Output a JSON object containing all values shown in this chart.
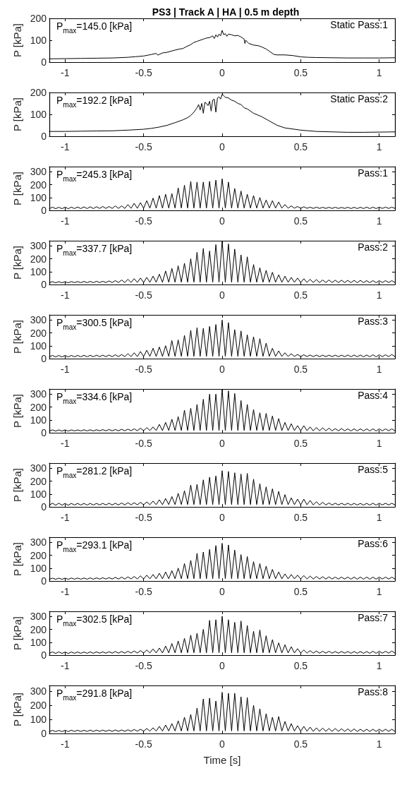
{
  "chart_data": [
    {
      "type": "line",
      "title": "PS3 | Track A | HA | 0.5 m depth",
      "ylabel": "P [kPa]",
      "annotations": [
        "P$_{max}$=145.0 [kPa]",
        "Static Pass:1"
      ],
      "xlim": [
        -1.1,
        1.1
      ],
      "xticks": [
        -1,
        -0.5,
        0,
        0.5,
        1
      ],
      "ylim": [
        0,
        200
      ],
      "yticks": [
        0,
        100,
        200
      ],
      "grid": false,
      "marker": "none",
      "line_style": "solid",
      "x": [
        -1.1,
        -1.0,
        -0.9,
        -0.8,
        -0.7,
        -0.6,
        -0.55,
        -0.5,
        -0.45,
        -0.42,
        -0.41,
        -0.38,
        -0.35,
        -0.3,
        -0.27,
        -0.25,
        -0.23,
        -0.2,
        -0.18,
        -0.16,
        -0.14,
        -0.12,
        -0.1,
        -0.08,
        -0.06,
        -0.05,
        -0.04,
        -0.03,
        -0.02,
        -0.01,
        0,
        0.01,
        0.02,
        0.03,
        0.04,
        0.06,
        0.08,
        0.1,
        0.12,
        0.14,
        0.145,
        0.15,
        0.17,
        0.2,
        0.23,
        0.25,
        0.28,
        0.3,
        0.33,
        0.35,
        0.4,
        0.45,
        0.5,
        0.55,
        0.6,
        0.7,
        0.8,
        0.9,
        1.0,
        1.1
      ],
      "series": [
        {
          "color": "#000000",
          "values": [
            15,
            16,
            17,
            18,
            19,
            22,
            25,
            28,
            35,
            40,
            32,
            42,
            45,
            55,
            60,
            62,
            70,
            80,
            90,
            95,
            100,
            105,
            110,
            112,
            120,
            108,
            125,
            115,
            128,
            120,
            145,
            125,
            130,
            118,
            128,
            125,
            120,
            122,
            115,
            105,
            85,
            100,
            85,
            78,
            75,
            70,
            60,
            50,
            35,
            33,
            33,
            30,
            24,
            22,
            21,
            20,
            19,
            19,
            19,
            20
          ]
        }
      ]
    },
    {
      "type": "line",
      "ylabel": "P [kPa]",
      "annotations": [
        "P$_{max}$=192.2 [kPa]",
        "Static Pass:2"
      ],
      "xlim": [
        -1.1,
        1.1
      ],
      "xticks": [
        -1,
        -0.5,
        0,
        0.5,
        1
      ],
      "ylim": [
        0,
        200
      ],
      "yticks": [
        0,
        100,
        200
      ],
      "grid": false,
      "marker": "none",
      "line_style": "solid",
      "x": [
        -1.1,
        -1.0,
        -0.9,
        -0.8,
        -0.7,
        -0.6,
        -0.5,
        -0.45,
        -0.4,
        -0.35,
        -0.3,
        -0.25,
        -0.22,
        -0.2,
        -0.18,
        -0.16,
        -0.15,
        -0.14,
        -0.13,
        -0.12,
        -0.11,
        -0.1,
        -0.09,
        -0.08,
        -0.07,
        -0.06,
        -0.05,
        -0.04,
        -0.03,
        -0.02,
        -0.01,
        0,
        0.01,
        0.02,
        0.04,
        0.06,
        0.08,
        0.1,
        0.12,
        0.14,
        0.16,
        0.18,
        0.2,
        0.25,
        0.3,
        0.35,
        0.4,
        0.5,
        0.6,
        0.7,
        0.8,
        0.9,
        1.0,
        1.1
      ],
      "series": [
        {
          "color": "#000000",
          "values": [
            22,
            22,
            23,
            24,
            25,
            28,
            32,
            36,
            42,
            50,
            62,
            75,
            85,
            95,
            110,
            130,
            145,
            120,
            150,
            105,
            155,
            150,
            140,
            160,
            115,
            165,
            170,
            110,
            175,
            180,
            170,
            192,
            185,
            178,
            175,
            165,
            160,
            150,
            145,
            130,
            125,
            115,
            105,
            90,
            70,
            50,
            38,
            28,
            22,
            20,
            18,
            18,
            19,
            20
          ]
        }
      ]
    },
    {
      "type": "line",
      "ylabel": "P [kPa]",
      "annotations": [
        "P$_{max}$=245.3 [kPa]",
        "Pass:1"
      ],
      "xlim": [
        -1.1,
        1.1
      ],
      "xticks": [
        -1,
        -0.5,
        0,
        0.5,
        1
      ],
      "ylim": [
        0,
        340
      ],
      "yticks": [
        0,
        100,
        200,
        300
      ],
      "grid": false,
      "marker": "none",
      "line_style": "solid",
      "x": [
        -1.1,
        -1.08,
        -1.06,
        -1.04,
        -1.02,
        -1,
        -0.98,
        -0.96,
        -0.94,
        -0.92,
        -0.9,
        -0.88,
        -0.86,
        -0.84,
        -0.82,
        -0.8,
        -0.78,
        -0.76,
        -0.74,
        -0.72,
        -0.7,
        -0.68,
        -0.66,
        -0.64,
        -0.62,
        -0.6,
        -0.58,
        -0.56,
        -0.54,
        -0.52,
        -0.5,
        -0.48,
        -0.46,
        -0.44,
        -0.42,
        -0.4,
        -0.38,
        -0.36,
        -0.34,
        -0.32,
        -0.3,
        -0.28,
        -0.26,
        -0.24,
        -0.22,
        -0.2,
        -0.18,
        -0.16,
        -0.14,
        -0.12,
        -0.1,
        -0.08,
        -0.06,
        -0.04,
        -0.02,
        0,
        0.02,
        0.04,
        0.06,
        0.08,
        0.1,
        0.12,
        0.14,
        0.16,
        0.18,
        0.2,
        0.22,
        0.24,
        0.26,
        0.28,
        0.3,
        0.32,
        0.34,
        0.36,
        0.38,
        0.4,
        0.42,
        0.44,
        0.46,
        0.48,
        0.5,
        0.52,
        0.54,
        0.56,
        0.58,
        0.6,
        0.62,
        0.64,
        0.66,
        0.68,
        0.7,
        0.72,
        0.74,
        0.76,
        0.78,
        0.8,
        0.82,
        0.84,
        0.86,
        0.88,
        0.9,
        0.92,
        0.94,
        0.96,
        0.98,
        1,
        1.02,
        1.04,
        1.06,
        1.08,
        1.1
      ],
      "series": [
        {
          "color": "#000000",
          "values": [
            14,
            25,
            13,
            24,
            13,
            25,
            13,
            25,
            14,
            26,
            14,
            27,
            14,
            28,
            14,
            28,
            15,
            30,
            15,
            30,
            15,
            35,
            15,
            35,
            15,
            45,
            16,
            55,
            16,
            60,
            16,
            75,
            17,
            95,
            17,
            115,
            17,
            125,
            18,
            130,
            18,
            175,
            18,
            195,
            18,
            225,
            18,
            220,
            18,
            220,
            18,
            225,
            18,
            235,
            18,
            245,
            18,
            220,
            18,
            170,
            18,
            150,
            18,
            125,
            18,
            115,
            18,
            100,
            18,
            80,
            18,
            75,
            18,
            65,
            17,
            45,
            17,
            35,
            17,
            30,
            16,
            28,
            16,
            25,
            15,
            25,
            15,
            24,
            15,
            24,
            15,
            24,
            15,
            23,
            15,
            24,
            14,
            24,
            14,
            24,
            14,
            25,
            14,
            25,
            14,
            25,
            15,
            25,
            15,
            25,
            15
          ]
        }
      ]
    },
    {
      "type": "line",
      "ylabel": "P [kPa]",
      "annotations": [
        "P$_{max}$=337.7 [kPa]",
        "Pass:2"
      ],
      "xlim": [
        -1.1,
        1.1
      ],
      "xticks": [
        -1,
        -0.5,
        0,
        0.5,
        1
      ],
      "ylim": [
        0,
        340
      ],
      "yticks": [
        0,
        100,
        200,
        300
      ],
      "grid": false,
      "marker": "none",
      "line_style": "solid",
      "x": [
        -1.1,
        -1.08,
        -1.06,
        -1.04,
        -1.02,
        -1,
        -0.98,
        -0.96,
        -0.94,
        -0.92,
        -0.9,
        -0.88,
        -0.86,
        -0.84,
        -0.82,
        -0.8,
        -0.78,
        -0.76,
        -0.74,
        -0.72,
        -0.7,
        -0.68,
        -0.66,
        -0.64,
        -0.62,
        -0.6,
        -0.58,
        -0.56,
        -0.54,
        -0.52,
        -0.5,
        -0.48,
        -0.46,
        -0.44,
        -0.42,
        -0.4,
        -0.38,
        -0.36,
        -0.34,
        -0.32,
        -0.3,
        -0.28,
        -0.26,
        -0.24,
        -0.22,
        -0.2,
        -0.18,
        -0.16,
        -0.14,
        -0.12,
        -0.1,
        -0.08,
        -0.06,
        -0.04,
        -0.02,
        0,
        0.02,
        0.04,
        0.06,
        0.08,
        0.1,
        0.12,
        0.14,
        0.16,
        0.18,
        0.2,
        0.22,
        0.24,
        0.26,
        0.28,
        0.3,
        0.32,
        0.34,
        0.36,
        0.38,
        0.4,
        0.42,
        0.44,
        0.46,
        0.48,
        0.5,
        0.52,
        0.54,
        0.56,
        0.58,
        0.6,
        0.62,
        0.64,
        0.66,
        0.68,
        0.7,
        0.72,
        0.74,
        0.76,
        0.78,
        0.8,
        0.82,
        0.84,
        0.86,
        0.88,
        0.9,
        0.92,
        0.94,
        0.96,
        0.98,
        1,
        1.02,
        1.04,
        1.06,
        1.08,
        1.1
      ],
      "series": [
        {
          "color": "#000000",
          "values": [
            14,
            22,
            13,
            22,
            13,
            22,
            13,
            23,
            14,
            23,
            14,
            24,
            14,
            24,
            14,
            25,
            15,
            25,
            15,
            28,
            15,
            30,
            15,
            35,
            15,
            40,
            16,
            45,
            16,
            50,
            16,
            55,
            17,
            65,
            17,
            80,
            17,
            105,
            18,
            125,
            18,
            145,
            18,
            165,
            18,
            200,
            18,
            250,
            18,
            280,
            18,
            260,
            18,
            310,
            18,
            338,
            18,
            315,
            18,
            275,
            18,
            230,
            18,
            215,
            18,
            155,
            18,
            130,
            18,
            110,
            18,
            95,
            18,
            75,
            17,
            65,
            17,
            55,
            17,
            50,
            16,
            45,
            16,
            40,
            15,
            38,
            15,
            35,
            15,
            35,
            15,
            33,
            15,
            33,
            15,
            32,
            14,
            32,
            14,
            32,
            14,
            30,
            14,
            30,
            14,
            30,
            15,
            30,
            15,
            30,
            15
          ]
        }
      ]
    },
    {
      "type": "line",
      "ylabel": "P [kPa]",
      "annotations": [
        "P$_{max}$=300.5 [kPa]",
        "Pass:3"
      ],
      "xlim": [
        -1.1,
        1.1
      ],
      "xticks": [
        -1,
        -0.5,
        0,
        0.5,
        1
      ],
      "ylim": [
        0,
        340
      ],
      "yticks": [
        0,
        100,
        200,
        300
      ],
      "grid": false,
      "marker": "none",
      "line_style": "solid",
      "x": [
        -1.1,
        -1.08,
        -1.06,
        -1.04,
        -1.02,
        -1,
        -0.98,
        -0.96,
        -0.94,
        -0.92,
        -0.9,
        -0.88,
        -0.86,
        -0.84,
        -0.82,
        -0.8,
        -0.78,
        -0.76,
        -0.74,
        -0.72,
        -0.7,
        -0.68,
        -0.66,
        -0.64,
        -0.62,
        -0.6,
        -0.58,
        -0.56,
        -0.54,
        -0.52,
        -0.5,
        -0.48,
        -0.46,
        -0.44,
        -0.42,
        -0.4,
        -0.38,
        -0.36,
        -0.34,
        -0.32,
        -0.3,
        -0.28,
        -0.26,
        -0.24,
        -0.22,
        -0.2,
        -0.18,
        -0.16,
        -0.14,
        -0.12,
        -0.1,
        -0.08,
        -0.06,
        -0.04,
        -0.02,
        0,
        0.02,
        0.04,
        0.06,
        0.08,
        0.1,
        0.12,
        0.14,
        0.16,
        0.18,
        0.2,
        0.22,
        0.24,
        0.26,
        0.28,
        0.3,
        0.32,
        0.34,
        0.36,
        0.38,
        0.4,
        0.42,
        0.44,
        0.46,
        0.48,
        0.5,
        0.52,
        0.54,
        0.56,
        0.58,
        0.6,
        0.62,
        0.64,
        0.66,
        0.68,
        0.7,
        0.72,
        0.74,
        0.76,
        0.78,
        0.8,
        0.82,
        0.84,
        0.86,
        0.88,
        0.9,
        0.92,
        0.94,
        0.96,
        0.98,
        1,
        1.02,
        1.04,
        1.06,
        1.08,
        1.1
      ],
      "series": [
        {
          "color": "#000000",
          "values": [
            14,
            25,
            13,
            25,
            13,
            25,
            13,
            25,
            14,
            25,
            14,
            26,
            14,
            26,
            14,
            27,
            15,
            27,
            15,
            28,
            15,
            30,
            15,
            32,
            15,
            38,
            16,
            45,
            16,
            55,
            16,
            65,
            17,
            80,
            17,
            90,
            17,
            100,
            18,
            140,
            18,
            145,
            18,
            180,
            18,
            220,
            18,
            240,
            18,
            235,
            18,
            250,
            18,
            265,
            18,
            300,
            18,
            280,
            18,
            225,
            18,
            215,
            18,
            185,
            18,
            170,
            18,
            155,
            18,
            120,
            18,
            80,
            18,
            60,
            17,
            45,
            17,
            38,
            17,
            32,
            16,
            30,
            16,
            28,
            15,
            28,
            15,
            27,
            15,
            27,
            15,
            27,
            15,
            27,
            15,
            28,
            14,
            28,
            14,
            28,
            14,
            28,
            14,
            30,
            14,
            30,
            15,
            30,
            15,
            32,
            15
          ]
        }
      ]
    },
    {
      "type": "line",
      "ylabel": "P [kPa]",
      "annotations": [
        "P$_{max}$=334.6 [kPa]",
        "Pass:4"
      ],
      "xlim": [
        -1.1,
        1.1
      ],
      "xticks": [
        -1,
        -0.5,
        0,
        0.5,
        1
      ],
      "ylim": [
        0,
        340
      ],
      "yticks": [
        0,
        100,
        200,
        300
      ],
      "grid": false,
      "marker": "none",
      "line_style": "solid",
      "x": [
        -1.1,
        -1.08,
        -1.06,
        -1.04,
        -1.02,
        -1,
        -0.98,
        -0.96,
        -0.94,
        -0.92,
        -0.9,
        -0.88,
        -0.86,
        -0.84,
        -0.82,
        -0.8,
        -0.78,
        -0.76,
        -0.74,
        -0.72,
        -0.7,
        -0.68,
        -0.66,
        -0.64,
        -0.62,
        -0.6,
        -0.58,
        -0.56,
        -0.54,
        -0.52,
        -0.5,
        -0.48,
        -0.46,
        -0.44,
        -0.42,
        -0.4,
        -0.38,
        -0.36,
        -0.34,
        -0.32,
        -0.3,
        -0.28,
        -0.26,
        -0.24,
        -0.22,
        -0.2,
        -0.18,
        -0.16,
        -0.14,
        -0.12,
        -0.1,
        -0.08,
        -0.06,
        -0.04,
        -0.02,
        0,
        0.02,
        0.04,
        0.06,
        0.08,
        0.1,
        0.12,
        0.14,
        0.16,
        0.18,
        0.2,
        0.22,
        0.24,
        0.26,
        0.28,
        0.3,
        0.32,
        0.34,
        0.36,
        0.38,
        0.4,
        0.42,
        0.44,
        0.46,
        0.48,
        0.5,
        0.52,
        0.54,
        0.56,
        0.58,
        0.6,
        0.62,
        0.64,
        0.66,
        0.68,
        0.7,
        0.72,
        0.74,
        0.76,
        0.78,
        0.8,
        0.82,
        0.84,
        0.86,
        0.88,
        0.9,
        0.92,
        0.94,
        0.96,
        0.98,
        1,
        1.02,
        1.04,
        1.06,
        1.08,
        1.1
      ],
      "series": [
        {
          "color": "#000000",
          "values": [
            14,
            22,
            13,
            22,
            13,
            22,
            13,
            22,
            14,
            22,
            14,
            23,
            14,
            23,
            14,
            23,
            15,
            24,
            15,
            25,
            15,
            25,
            15,
            27,
            15,
            28,
            16,
            30,
            16,
            35,
            16,
            40,
            17,
            45,
            17,
            65,
            17,
            80,
            18,
            105,
            18,
            125,
            18,
            175,
            18,
            190,
            18,
            220,
            18,
            260,
            18,
            300,
            18,
            300,
            18,
            335,
            18,
            325,
            18,
            305,
            18,
            250,
            18,
            220,
            18,
            180,
            18,
            155,
            18,
            150,
            18,
            130,
            18,
            110,
            17,
            80,
            17,
            70,
            17,
            55,
            16,
            55,
            16,
            45,
            15,
            40,
            15,
            38,
            15,
            35,
            15,
            32,
            15,
            32,
            15,
            30,
            14,
            30,
            14,
            30,
            14,
            30,
            14,
            30,
            14,
            30,
            15,
            30,
            15,
            30,
            15
          ]
        }
      ]
    },
    {
      "type": "line",
      "ylabel": "P [kPa]",
      "annotations": [
        "P$_{max}$=281.2 [kPa]",
        "Pass:5"
      ],
      "xlim": [
        -1.1,
        1.1
      ],
      "xticks": [
        -1,
        -0.5,
        0,
        0.5,
        1
      ],
      "ylim": [
        0,
        340
      ],
      "yticks": [
        0,
        100,
        200,
        300
      ],
      "grid": false,
      "marker": "none",
      "line_style": "solid",
      "x": [
        -1.1,
        -1.08,
        -1.06,
        -1.04,
        -1.02,
        -1,
        -0.98,
        -0.96,
        -0.94,
        -0.92,
        -0.9,
        -0.88,
        -0.86,
        -0.84,
        -0.82,
        -0.8,
        -0.78,
        -0.76,
        -0.74,
        -0.72,
        -0.7,
        -0.68,
        -0.66,
        -0.64,
        -0.62,
        -0.6,
        -0.58,
        -0.56,
        -0.54,
        -0.52,
        -0.5,
        -0.48,
        -0.46,
        -0.44,
        -0.42,
        -0.4,
        -0.38,
        -0.36,
        -0.34,
        -0.32,
        -0.3,
        -0.28,
        -0.26,
        -0.24,
        -0.22,
        -0.2,
        -0.18,
        -0.16,
        -0.14,
        -0.12,
        -0.1,
        -0.08,
        -0.06,
        -0.04,
        -0.02,
        0,
        0.02,
        0.04,
        0.06,
        0.08,
        0.1,
        0.12,
        0.14,
        0.16,
        0.18,
        0.2,
        0.22,
        0.24,
        0.26,
        0.28,
        0.3,
        0.32,
        0.34,
        0.36,
        0.38,
        0.4,
        0.42,
        0.44,
        0.46,
        0.48,
        0.5,
        0.52,
        0.54,
        0.56,
        0.58,
        0.6,
        0.62,
        0.64,
        0.66,
        0.68,
        0.7,
        0.72,
        0.74,
        0.76,
        0.78,
        0.8,
        0.82,
        0.84,
        0.86,
        0.88,
        0.9,
        0.92,
        0.94,
        0.96,
        0.98,
        1,
        1.02,
        1.04,
        1.06,
        1.08,
        1.1
      ],
      "series": [
        {
          "color": "#000000",
          "values": [
            14,
            28,
            13,
            28,
            13,
            27,
            13,
            27,
            14,
            27,
            14,
            27,
            14,
            27,
            14,
            27,
            15,
            27,
            15,
            28,
            15,
            28,
            15,
            30,
            15,
            32,
            16,
            32,
            16,
            35,
            16,
            38,
            17,
            45,
            17,
            55,
            17,
            65,
            18,
            80,
            18,
            105,
            18,
            125,
            18,
            170,
            18,
            175,
            18,
            210,
            18,
            230,
            18,
            240,
            18,
            281,
            18,
            275,
            18,
            265,
            18,
            255,
            18,
            260,
            18,
            215,
            18,
            180,
            18,
            155,
            18,
            140,
            18,
            120,
            17,
            95,
            17,
            70,
            17,
            60,
            16,
            60,
            16,
            50,
            15,
            40,
            15,
            35,
            15,
            30,
            15,
            28,
            15,
            28,
            15,
            28,
            14,
            27,
            14,
            27,
            14,
            27,
            14,
            28,
            14,
            28,
            15,
            28,
            15,
            28,
            15
          ]
        }
      ]
    },
    {
      "type": "line",
      "ylabel": "P [kPa]",
      "annotations": [
        "P$_{max}$=293.1 [kPa]",
        "Pass:6"
      ],
      "xlim": [
        -1.1,
        1.1
      ],
      "xticks": [
        -1,
        -0.5,
        0,
        0.5,
        1
      ],
      "ylim": [
        0,
        340
      ],
      "yticks": [
        0,
        100,
        200,
        300
      ],
      "grid": false,
      "marker": "none",
      "line_style": "solid",
      "x": [
        -1.1,
        -1.08,
        -1.06,
        -1.04,
        -1.02,
        -1,
        -0.98,
        -0.96,
        -0.94,
        -0.92,
        -0.9,
        -0.88,
        -0.86,
        -0.84,
        -0.82,
        -0.8,
        -0.78,
        -0.76,
        -0.74,
        -0.72,
        -0.7,
        -0.68,
        -0.66,
        -0.64,
        -0.62,
        -0.6,
        -0.58,
        -0.56,
        -0.54,
        -0.52,
        -0.5,
        -0.48,
        -0.46,
        -0.44,
        -0.42,
        -0.4,
        -0.38,
        -0.36,
        -0.34,
        -0.32,
        -0.3,
        -0.28,
        -0.26,
        -0.24,
        -0.22,
        -0.2,
        -0.18,
        -0.16,
        -0.14,
        -0.12,
        -0.1,
        -0.08,
        -0.06,
        -0.04,
        -0.02,
        0,
        0.02,
        0.04,
        0.06,
        0.08,
        0.1,
        0.12,
        0.14,
        0.16,
        0.18,
        0.2,
        0.22,
        0.24,
        0.26,
        0.28,
        0.3,
        0.32,
        0.34,
        0.36,
        0.38,
        0.4,
        0.42,
        0.44,
        0.46,
        0.48,
        0.5,
        0.52,
        0.54,
        0.56,
        0.58,
        0.6,
        0.62,
        0.64,
        0.66,
        0.68,
        0.7,
        0.72,
        0.74,
        0.76,
        0.78,
        0.8,
        0.82,
        0.84,
        0.86,
        0.88,
        0.9,
        0.92,
        0.94,
        0.96,
        0.98,
        1,
        1.02,
        1.04,
        1.06,
        1.08,
        1.1
      ],
      "series": [
        {
          "color": "#000000",
          "values": [
            14,
            22,
            13,
            22,
            13,
            22,
            13,
            23,
            14,
            23,
            14,
            23,
            14,
            24,
            14,
            24,
            15,
            25,
            15,
            26,
            15,
            28,
            15,
            30,
            15,
            32,
            16,
            35,
            16,
            40,
            16,
            45,
            17,
            50,
            17,
            60,
            17,
            70,
            18,
            80,
            18,
            100,
            18,
            135,
            18,
            160,
            18,
            215,
            18,
            225,
            18,
            245,
            18,
            275,
            18,
            293,
            18,
            280,
            18,
            240,
            18,
            205,
            18,
            190,
            18,
            150,
            18,
            135,
            18,
            115,
            18,
            90,
            18,
            70,
            17,
            55,
            17,
            50,
            17,
            45,
            16,
            42,
            16,
            38,
            15,
            35,
            15,
            33,
            15,
            32,
            15,
            30,
            15,
            30,
            15,
            30,
            14,
            30,
            14,
            30,
            14,
            30,
            14,
            30,
            14,
            30,
            15,
            30,
            15,
            30,
            15
          ]
        }
      ]
    },
    {
      "type": "line",
      "ylabel": "P [kPa]",
      "annotations": [
        "P$_{max}$=302.5 [kPa]",
        "Pass:7"
      ],
      "xlim": [
        -1.1,
        1.1
      ],
      "xticks": [
        -1,
        -0.5,
        0,
        0.5,
        1
      ],
      "ylim": [
        0,
        340
      ],
      "yticks": [
        0,
        100,
        200,
        300
      ],
      "grid": false,
      "marker": "none",
      "line_style": "solid",
      "x": [
        -1.1,
        -1.08,
        -1.06,
        -1.04,
        -1.02,
        -1,
        -0.98,
        -0.96,
        -0.94,
        -0.92,
        -0.9,
        -0.88,
        -0.86,
        -0.84,
        -0.82,
        -0.8,
        -0.78,
        -0.76,
        -0.74,
        -0.72,
        -0.7,
        -0.68,
        -0.66,
        -0.64,
        -0.62,
        -0.6,
        -0.58,
        -0.56,
        -0.54,
        -0.52,
        -0.5,
        -0.48,
        -0.46,
        -0.44,
        -0.42,
        -0.4,
        -0.38,
        -0.36,
        -0.34,
        -0.32,
        -0.3,
        -0.28,
        -0.26,
        -0.24,
        -0.22,
        -0.2,
        -0.18,
        -0.16,
        -0.14,
        -0.12,
        -0.1,
        -0.08,
        -0.06,
        -0.04,
        -0.02,
        0,
        0.02,
        0.04,
        0.06,
        0.08,
        0.1,
        0.12,
        0.14,
        0.16,
        0.18,
        0.2,
        0.22,
        0.24,
        0.26,
        0.28,
        0.3,
        0.32,
        0.34,
        0.36,
        0.38,
        0.4,
        0.42,
        0.44,
        0.46,
        0.48,
        0.5,
        0.52,
        0.54,
        0.56,
        0.58,
        0.6,
        0.62,
        0.64,
        0.66,
        0.68,
        0.7,
        0.72,
        0.74,
        0.76,
        0.78,
        0.8,
        0.82,
        0.84,
        0.86,
        0.88,
        0.9,
        0.92,
        0.94,
        0.96,
        0.98,
        1,
        1.02,
        1.04,
        1.06,
        1.08,
        1.1
      ],
      "series": [
        {
          "color": "#000000",
          "values": [
            14,
            25,
            13,
            25,
            13,
            24,
            13,
            24,
            14,
            24,
            14,
            24,
            14,
            25,
            14,
            25,
            15,
            25,
            15,
            26,
            15,
            28,
            15,
            28,
            15,
            30,
            16,
            32,
            16,
            35,
            16,
            40,
            17,
            48,
            17,
            55,
            17,
            70,
            18,
            90,
            18,
            110,
            18,
            130,
            18,
            155,
            18,
            170,
            18,
            200,
            18,
            270,
            18,
            275,
            18,
            302,
            18,
            275,
            18,
            255,
            18,
            265,
            18,
            230,
            18,
            185,
            18,
            195,
            18,
            150,
            18,
            120,
            18,
            95,
            17,
            80,
            17,
            65,
            17,
            50,
            16,
            40,
            16,
            35,
            15,
            32,
            15,
            30,
            15,
            30,
            15,
            28,
            15,
            28,
            15,
            28,
            14,
            28,
            14,
            28,
            14,
            28,
            14,
            30,
            14,
            30,
            15,
            30,
            15,
            32,
            15
          ]
        }
      ]
    },
    {
      "type": "line",
      "ylabel": "P [kPa]",
      "xlabel": "Time [s]",
      "annotations": [
        "P$_{max}$=291.8 [kPa]",
        "Pass:8"
      ],
      "xlim": [
        -1.1,
        1.1
      ],
      "xticks": [
        -1,
        -0.5,
        0,
        0.5,
        1
      ],
      "ylim": [
        0,
        340
      ],
      "yticks": [
        0,
        100,
        200,
        300
      ],
      "grid": false,
      "marker": "none",
      "line_style": "solid",
      "x": [
        -1.1,
        -1.08,
        -1.06,
        -1.04,
        -1.02,
        -1,
        -0.98,
        -0.96,
        -0.94,
        -0.92,
        -0.9,
        -0.88,
        -0.86,
        -0.84,
        -0.82,
        -0.8,
        -0.78,
        -0.76,
        -0.74,
        -0.72,
        -0.7,
        -0.68,
        -0.66,
        -0.64,
        -0.62,
        -0.6,
        -0.58,
        -0.56,
        -0.54,
        -0.52,
        -0.5,
        -0.48,
        -0.46,
        -0.44,
        -0.42,
        -0.4,
        -0.38,
        -0.36,
        -0.34,
        -0.32,
        -0.3,
        -0.28,
        -0.26,
        -0.24,
        -0.22,
        -0.2,
        -0.18,
        -0.16,
        -0.14,
        -0.12,
        -0.1,
        -0.08,
        -0.06,
        -0.04,
        -0.02,
        0,
        0.02,
        0.04,
        0.06,
        0.08,
        0.1,
        0.12,
        0.14,
        0.16,
        0.18,
        0.2,
        0.22,
        0.24,
        0.26,
        0.28,
        0.3,
        0.32,
        0.34,
        0.36,
        0.38,
        0.4,
        0.42,
        0.44,
        0.46,
        0.48,
        0.5,
        0.52,
        0.54,
        0.56,
        0.58,
        0.6,
        0.62,
        0.64,
        0.66,
        0.68,
        0.7,
        0.72,
        0.74,
        0.76,
        0.78,
        0.8,
        0.82,
        0.84,
        0.86,
        0.88,
        0.9,
        0.92,
        0.94,
        0.96,
        0.98,
        1,
        1.02,
        1.04,
        1.06,
        1.08,
        1.1
      ],
      "series": [
        {
          "color": "#000000",
          "values": [
            14,
            22,
            13,
            22,
            13,
            23,
            13,
            23,
            14,
            23,
            14,
            23,
            14,
            24,
            14,
            24,
            15,
            24,
            15,
            24,
            15,
            25,
            15,
            25,
            15,
            26,
            16,
            28,
            16,
            30,
            16,
            35,
            17,
            40,
            17,
            50,
            17,
            60,
            18,
            70,
            18,
            90,
            18,
            115,
            18,
            135,
            18,
            180,
            18,
            245,
            18,
            250,
            18,
            230,
            18,
            292,
            18,
            285,
            18,
            285,
            18,
            260,
            18,
            255,
            18,
            200,
            18,
            175,
            18,
            140,
            18,
            115,
            18,
            120,
            17,
            85,
            17,
            70,
            17,
            55,
            16,
            50,
            16,
            45,
            15,
            40,
            15,
            38,
            15,
            35,
            15,
            35,
            15,
            33,
            15,
            32,
            14,
            32,
            14,
            30,
            14,
            30,
            14,
            30,
            14,
            30,
            15,
            30,
            15,
            30,
            15
          ]
        }
      ]
    }
  ]
}
